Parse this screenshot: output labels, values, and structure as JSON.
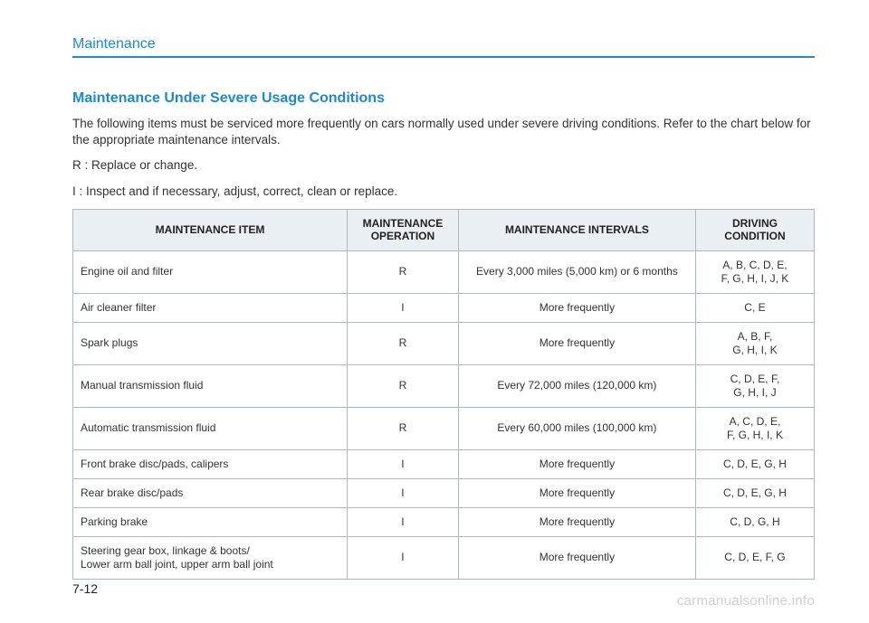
{
  "header": {
    "section": "Maintenance"
  },
  "heading": "Maintenance Under Severe Usage Conditions",
  "intro": "The following items must be serviced more frequently on cars normally used under severe driving conditions. Refer to the chart below for the appropriate maintenance intervals.",
  "legend_r": "R : Replace or change.",
  "legend_i": "I : Inspect and if necessary, adjust, correct, clean or replace.",
  "table": {
    "columns": [
      "MAINTENANCE ITEM",
      "MAINTENANCE OPERATION",
      "MAINTENANCE INTERVALS",
      "DRIVING CONDITION"
    ],
    "rows": [
      {
        "item": "Engine oil and filter",
        "op": "R",
        "interval": "Every 3,000 miles (5,000 km) or 6 months",
        "cond": "A, B, C, D, E,\nF, G, H, I, J, K"
      },
      {
        "item": "Air cleaner filter",
        "op": "I",
        "interval": "More frequently",
        "cond": "C, E"
      },
      {
        "item": "Spark plugs",
        "op": "R",
        "interval": "More frequently",
        "cond": "A, B, F,\nG, H, I, K"
      },
      {
        "item": "Manual transmission fluid",
        "op": "R",
        "interval": "Every 72,000 miles (120,000 km)",
        "cond": "C, D, E, F,\nG, H, I, J"
      },
      {
        "item": "Automatic transmission fluid",
        "op": "R",
        "interval": "Every 60,000 miles (100,000 km)",
        "cond": "A, C, D, E,\nF, G, H, I, K"
      },
      {
        "item": "Front brake disc/pads, calipers",
        "op": "I",
        "interval": "More frequently",
        "cond": "C, D, E, G, H"
      },
      {
        "item": "Rear brake disc/pads",
        "op": "I",
        "interval": "More frequently",
        "cond": "C, D, E, G, H"
      },
      {
        "item": "Parking brake",
        "op": "I",
        "interval": "More frequently",
        "cond": "C, D, G, H"
      },
      {
        "item": "Steering gear box, linkage & boots/\nLower arm ball joint, upper arm ball joint",
        "op": "I",
        "interval": "More frequently",
        "cond": "C, D, E, F, G"
      }
    ],
    "header_bg": "#e9eff3",
    "border_color": "#b0b6ba",
    "text_color": "#333333",
    "accent_color": "#1e88d6"
  },
  "page_number": "7-12",
  "watermark": "carmanualsonline.info"
}
